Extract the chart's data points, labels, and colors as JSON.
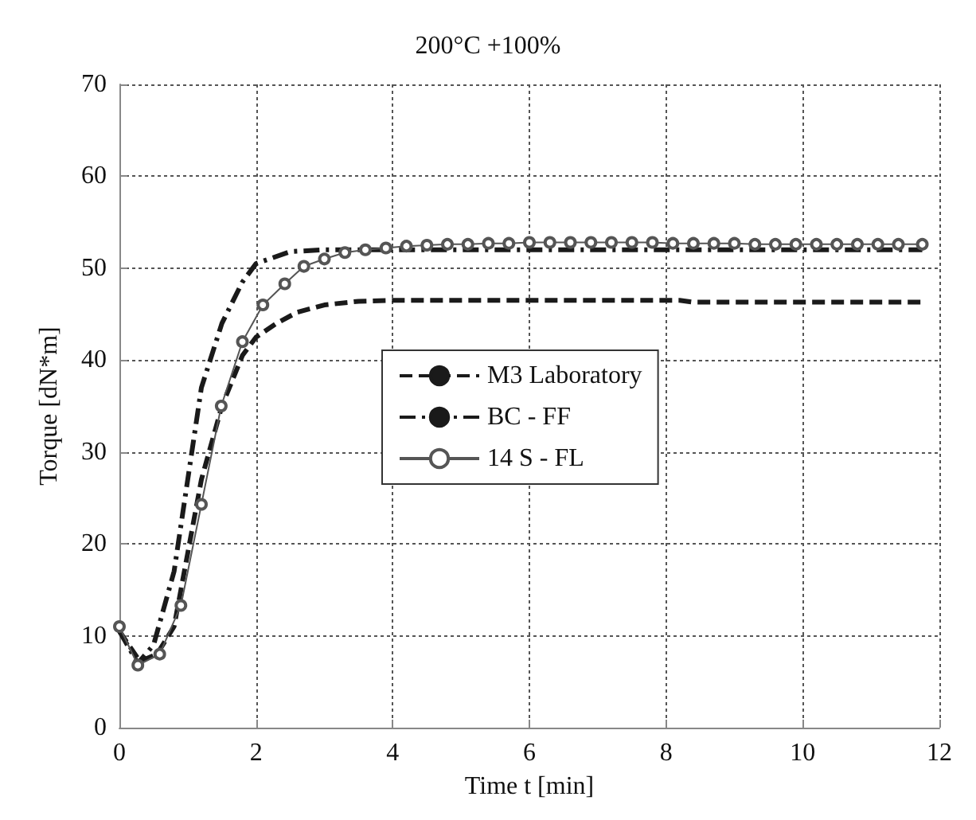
{
  "chart_data": {
    "type": "line",
    "title": "200°C +100%",
    "xlabel": "Time t [min]",
    "ylabel": "Torque [dN*m]",
    "xlim": [
      0,
      12
    ],
    "xticks": [
      0,
      2,
      4,
      6,
      8,
      10,
      12
    ],
    "ylim": [
      0,
      70
    ],
    "yticks": [
      0,
      10,
      20,
      30,
      40,
      50,
      60,
      70
    ],
    "grid": true,
    "legend": "right",
    "series": [
      {
        "name": "M3 Laboratory",
        "color": "#1a1a1a",
        "line_style": "dashed",
        "marker": "none",
        "x": [
          0,
          0.3,
          0.55,
          0.8,
          1.0,
          1.2,
          1.5,
          1.8,
          2.0,
          2.3,
          2.6,
          3.0,
          3.5,
          4.0,
          6.0,
          8.2,
          8.4,
          10.0,
          11.75
        ],
        "values": [
          10.5,
          7.2,
          8,
          11,
          19,
          27,
          35,
          40.5,
          42.5,
          44,
          45.2,
          46,
          46.4,
          46.5,
          46.5,
          46.5,
          46.3,
          46.3,
          46.3
        ]
      },
      {
        "name": "BC - FF",
        "color": "#1a1a1a",
        "line_style": "dashdot",
        "marker": "none",
        "x": [
          0,
          0.27,
          0.5,
          0.8,
          1.0,
          1.2,
          1.5,
          1.8,
          2.0,
          2.5,
          3.0,
          4.0,
          6.0,
          8.0,
          10.0,
          11.75
        ],
        "values": [
          10.5,
          7,
          9,
          17,
          27,
          37,
          44,
          48.5,
          50.5,
          51.8,
          52,
          52,
          52,
          52,
          52,
          52
        ]
      },
      {
        "name": "14 S - FL",
        "color": "#555555",
        "line_style": "solid",
        "marker": "circle",
        "x": [
          0,
          0.27,
          0.59,
          0.9,
          1.2,
          1.49,
          1.8,
          2.1,
          2.42,
          2.7,
          3.0,
          3.3,
          3.6,
          3.9,
          4.2,
          4.5,
          4.8,
          5.1,
          5.4,
          5.7,
          6.0,
          6.3,
          6.6,
          6.9,
          7.2,
          7.5,
          7.8,
          8.1,
          8.4,
          8.7,
          9.0,
          9.3,
          9.6,
          9.9,
          10.2,
          10.5,
          10.8,
          11.1,
          11.4,
          11.75
        ],
        "values": [
          11,
          6.8,
          8,
          13.3,
          24.3,
          35,
          42,
          46,
          48.3,
          50.2,
          51,
          51.7,
          52,
          52.2,
          52.4,
          52.5,
          52.6,
          52.6,
          52.7,
          52.7,
          52.8,
          52.8,
          52.8,
          52.8,
          52.8,
          52.8,
          52.8,
          52.7,
          52.7,
          52.7,
          52.7,
          52.6,
          52.6,
          52.6,
          52.6,
          52.6,
          52.6,
          52.6,
          52.6,
          52.6
        ]
      }
    ]
  }
}
